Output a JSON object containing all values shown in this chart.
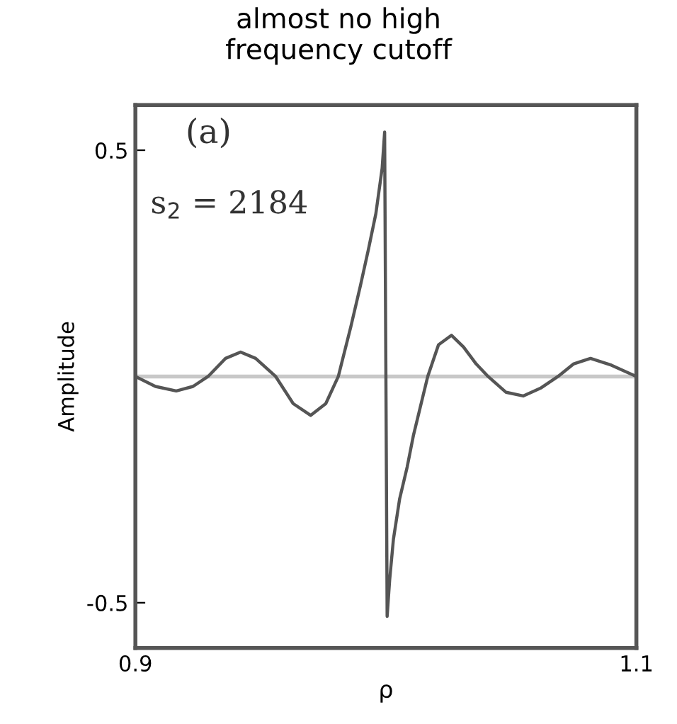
{
  "chart_data": {
    "type": "line",
    "title": "almost no high\nfrequency cutoff",
    "xlabel": "ρ",
    "ylabel": "Amplitude",
    "annotations": [
      "(a)",
      "s$_{2}$ = 2184"
    ],
    "series": [
      {
        "color": "#555555",
        "x": [
          0.9,
          0.908,
          0.9163,
          0.923,
          0.929,
          0.936,
          0.942,
          0.948,
          0.956,
          0.963,
          0.97,
          0.976,
          0.981,
          0.986,
          0.9898,
          0.993,
          0.996,
          0.9985,
          0.9995,
          1.0005,
          1.0015,
          1.003,
          1.0055,
          1.0085,
          1.011,
          1.0132,
          1.0167,
          1.021,
          1.0262,
          1.031,
          1.036,
          1.0408,
          1.048,
          1.0548,
          1.062,
          1.0687,
          1.075,
          1.0817,
          1.09,
          1.1
        ],
        "values": [
          0.0,
          -0.022,
          -0.032,
          -0.022,
          0.0,
          0.04,
          0.054,
          0.04,
          0.0,
          -0.06,
          -0.086,
          -0.06,
          0.0,
          0.11,
          0.2,
          0.28,
          0.36,
          0.46,
          0.54,
          -0.53,
          -0.45,
          -0.36,
          -0.27,
          -0.2,
          -0.13,
          -0.08,
          0.0,
          0.07,
          0.091,
          0.065,
          0.028,
          0.0,
          -0.035,
          -0.043,
          -0.025,
          0.0,
          0.028,
          0.04,
          0.025,
          0.0
        ]
      }
    ],
    "ref_lines": [
      {
        "axis": "y",
        "value": 0,
        "color": "#c8c8c8"
      }
    ],
    "xlim": [
      0.9,
      1.1
    ],
    "ylim": [
      -0.6,
      0.6
    ],
    "xticks": [
      0.9,
      1.1
    ],
    "yticks": [
      0.5,
      -0.5
    ],
    "grid": false,
    "legend": false,
    "marker": "none",
    "line_style": "solid"
  }
}
